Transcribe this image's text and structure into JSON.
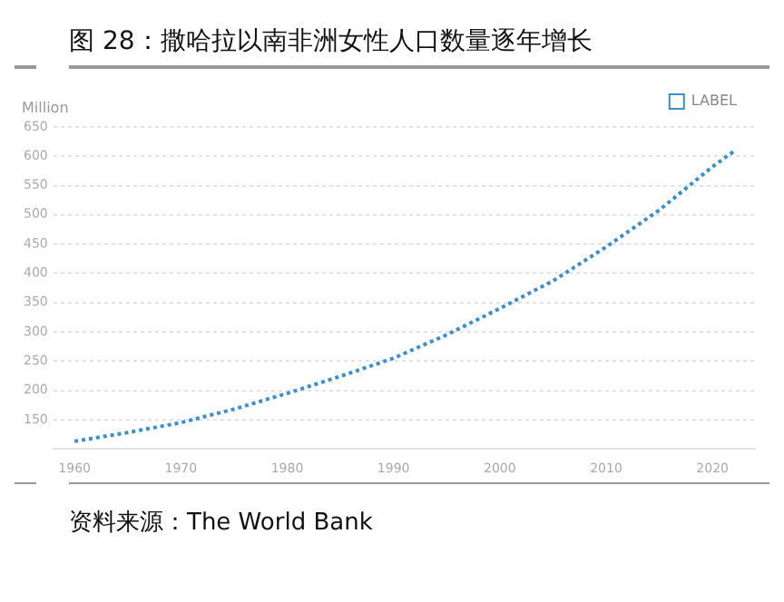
{
  "chart_data": {
    "type": "line",
    "title": "图 28：撒哈拉以南非洲女性人口数量逐年增长",
    "ylabel": "Million",
    "x": [
      1960,
      1965,
      1970,
      1975,
      1980,
      1985,
      1990,
      1995,
      2000,
      2005,
      2010,
      2015,
      2020,
      2022
    ],
    "series": [
      {
        "name": "LABEL",
        "color": "#3a8fd0",
        "values": [
          113,
          128,
          145,
          168,
          195,
          224,
          255,
          295,
          340,
          387,
          445,
          508,
          582,
          608
        ]
      }
    ],
    "xlim": [
      1958,
      2024
    ],
    "xticks": [
      1960,
      1970,
      1980,
      1990,
      2000,
      2010,
      2020
    ],
    "ylim": [
      100,
      650
    ],
    "yticks": [
      150,
      200,
      250,
      300,
      350,
      400,
      450,
      500,
      550,
      600,
      650
    ],
    "grid": "y",
    "legend": "top right",
    "marker": "none",
    "line_style": "dotted",
    "annotations": [
      "资料来源：The World Bank"
    ]
  }
}
